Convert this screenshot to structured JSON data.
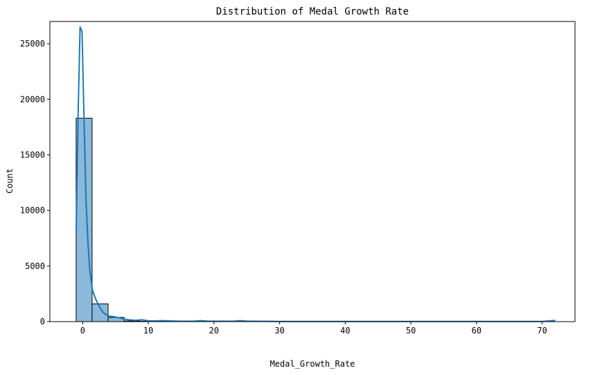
{
  "chart_data": {
    "type": "bar",
    "subtype": "histogram_with_kde",
    "title": "Distribution of Medal Growth Rate",
    "xlabel": "Medal_Growth_Rate",
    "ylabel": "Count",
    "xlim": [
      -5,
      75
    ],
    "ylim": [
      0,
      27000
    ],
    "xticks": [
      0,
      10,
      20,
      30,
      40,
      50,
      60,
      70
    ],
    "yticks": [
      0,
      5000,
      10000,
      15000,
      20000,
      25000
    ],
    "grid": false,
    "legend": "none",
    "bar_color": "#8ab9db",
    "line_color": "#1f77b4",
    "bins": [
      {
        "x0": -1.0,
        "x1": 1.43,
        "count": 18300
      },
      {
        "x0": 1.43,
        "x1": 3.87,
        "count": 1600
      },
      {
        "x0": 3.87,
        "x1": 6.3,
        "count": 380
      },
      {
        "x0": 6.3,
        "x1": 8.73,
        "count": 60
      },
      {
        "x0": 8.73,
        "x1": 11.17,
        "count": 30
      },
      {
        "x0": 11.17,
        "x1": 13.6,
        "count": 20
      },
      {
        "x0": 13.6,
        "x1": 16.03,
        "count": 10
      },
      {
        "x0": 16.03,
        "x1": 18.47,
        "count": 15
      },
      {
        "x0": 18.47,
        "x1": 20.9,
        "count": 8
      },
      {
        "x0": 20.9,
        "x1": 23.33,
        "count": 5
      },
      {
        "x0": 23.33,
        "x1": 25.77,
        "count": 10
      },
      {
        "x0": 25.77,
        "x1": 28.2,
        "count": 3
      },
      {
        "x0": 28.2,
        "x1": 30.63,
        "count": 2
      },
      {
        "x0": 30.63,
        "x1": 33.07,
        "count": 2
      },
      {
        "x0": 33.07,
        "x1": 35.5,
        "count": 1
      },
      {
        "x0": 35.5,
        "x1": 37.93,
        "count": 1
      },
      {
        "x0": 37.93,
        "x1": 40.37,
        "count": 1
      },
      {
        "x0": 40.37,
        "x1": 42.8,
        "count": 1
      },
      {
        "x0": 42.8,
        "x1": 45.23,
        "count": 1
      },
      {
        "x0": 45.23,
        "x1": 47.67,
        "count": 1
      },
      {
        "x0": 47.67,
        "x1": 50.1,
        "count": 1
      },
      {
        "x0": 50.1,
        "x1": 52.53,
        "count": 1
      },
      {
        "x0": 52.53,
        "x1": 54.97,
        "count": 1
      },
      {
        "x0": 54.97,
        "x1": 57.4,
        "count": 1
      },
      {
        "x0": 57.4,
        "x1": 59.83,
        "count": 1
      },
      {
        "x0": 59.83,
        "x1": 62.27,
        "count": 1
      },
      {
        "x0": 62.27,
        "x1": 64.7,
        "count": 1
      },
      {
        "x0": 64.7,
        "x1": 67.13,
        "count": 1
      },
      {
        "x0": 67.13,
        "x1": 69.57,
        "count": 1
      },
      {
        "x0": 69.57,
        "x1": 72.0,
        "count": 2
      }
    ],
    "kde": {
      "x": [
        -1.0,
        -0.7,
        -0.4,
        -0.1,
        0.2,
        0.5,
        0.8,
        1.1,
        1.5,
        2.0,
        2.5,
        3.0,
        3.5,
        4.0,
        5.0,
        6.0,
        7.0,
        8.0,
        9.0,
        10.0,
        11.0,
        12.0,
        13.0,
        15.0,
        17.0,
        18.0,
        19.0,
        21.0,
        23.0,
        24.0,
        25.0,
        27.0,
        30.0,
        40.0,
        50.0,
        60.0,
        70.0,
        71.0,
        72.0
      ],
      "y": [
        7900,
        18500,
        26500,
        26100,
        18200,
        11000,
        7000,
        4500,
        2800,
        2000,
        1400,
        900,
        650,
        500,
        420,
        280,
        160,
        120,
        160,
        80,
        60,
        90,
        70,
        40,
        50,
        90,
        50,
        40,
        40,
        90,
        50,
        30,
        20,
        15,
        12,
        12,
        12,
        60,
        110
      ]
    }
  }
}
